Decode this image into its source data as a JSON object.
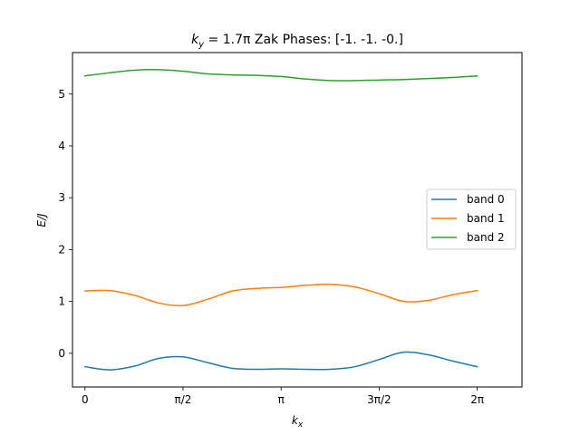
{
  "chart_data": {
    "type": "line",
    "title_prefix": "k",
    "title_subscript": "y",
    "title_value": " = 1.7π",
    "title_suffix": " Zak Phases: [-1. -1. -0.]",
    "xlabel_main": "k",
    "xlabel_sub": "x",
    "ylabel": "E/J",
    "xlim": [
      -0.2,
      7.0
    ],
    "ylim": [
      -0.65,
      5.8
    ],
    "xticks": [
      {
        "value": 0.0,
        "label": "0"
      },
      {
        "value": 1.5708,
        "label": "π/2"
      },
      {
        "value": 3.1416,
        "label": "π"
      },
      {
        "value": 4.7124,
        "label": "3π/2"
      },
      {
        "value": 6.2832,
        "label": "2π"
      }
    ],
    "yticks": [
      {
        "value": 0,
        "label": "0"
      },
      {
        "value": 1,
        "label": "1"
      },
      {
        "value": 2,
        "label": "2"
      },
      {
        "value": 3,
        "label": "3"
      },
      {
        "value": 4,
        "label": "4"
      },
      {
        "value": 5,
        "label": "5"
      }
    ],
    "grid": false,
    "legend_position": "right",
    "series": [
      {
        "name": "band 0",
        "color": "#1f77b4",
        "x": [
          0.0,
          0.393,
          0.785,
          1.178,
          1.571,
          1.963,
          2.356,
          2.749,
          3.142,
          3.534,
          3.927,
          4.32,
          4.712,
          5.105,
          5.498,
          5.89,
          6.283
        ],
        "y": [
          -0.26,
          -0.32,
          -0.25,
          -0.1,
          -0.07,
          -0.18,
          -0.29,
          -0.31,
          -0.3,
          -0.31,
          -0.31,
          -0.26,
          -0.12,
          0.02,
          -0.03,
          -0.15,
          -0.26
        ]
      },
      {
        "name": "band 1",
        "color": "#ff7f0e",
        "x": [
          0.0,
          0.393,
          0.785,
          1.178,
          1.571,
          1.963,
          2.356,
          2.749,
          3.142,
          3.534,
          3.927,
          4.32,
          4.712,
          5.105,
          5.498,
          5.89,
          6.283
        ],
        "y": [
          1.2,
          1.21,
          1.12,
          0.97,
          0.92,
          1.04,
          1.2,
          1.25,
          1.27,
          1.31,
          1.33,
          1.28,
          1.15,
          1.0,
          1.02,
          1.13,
          1.21
        ]
      },
      {
        "name": "band 2",
        "color": "#2ca02c",
        "x": [
          0.0,
          0.393,
          0.785,
          1.178,
          1.571,
          1.963,
          2.356,
          2.749,
          3.142,
          3.534,
          3.927,
          4.32,
          4.712,
          5.105,
          5.498,
          5.89,
          6.283
        ],
        "y": [
          5.35,
          5.41,
          5.46,
          5.47,
          5.44,
          5.39,
          5.37,
          5.36,
          5.34,
          5.29,
          5.26,
          5.26,
          5.27,
          5.28,
          5.3,
          5.32,
          5.35
        ]
      }
    ]
  }
}
